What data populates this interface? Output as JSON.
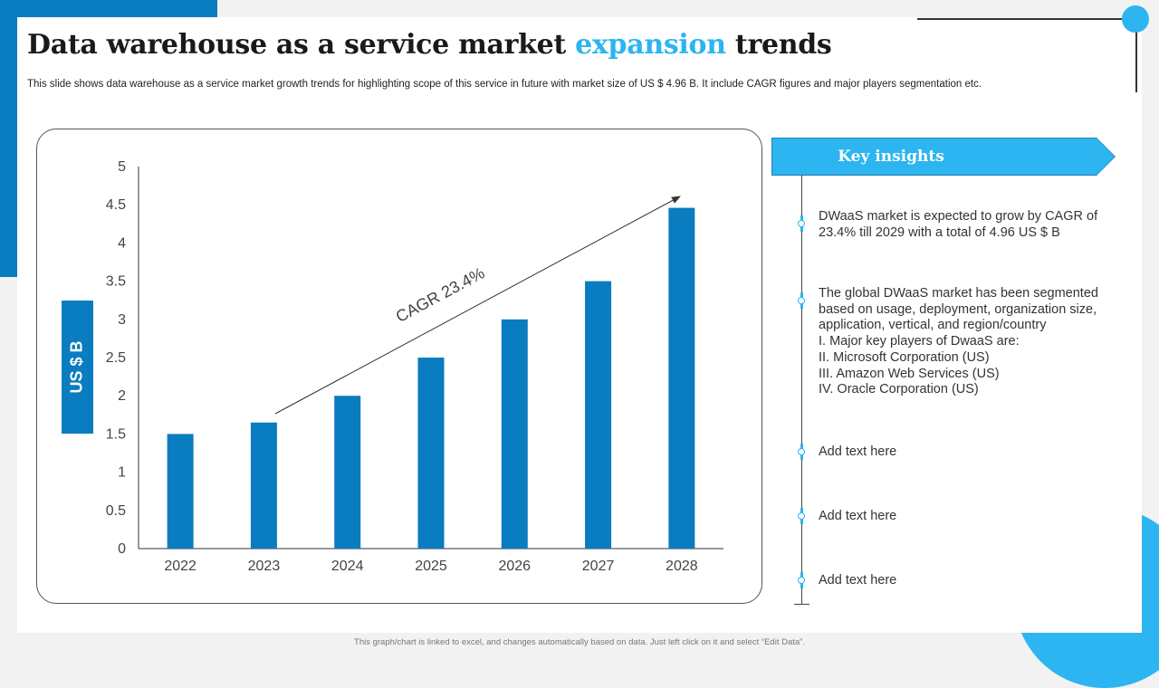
{
  "title": {
    "part1": "Data warehouse as a service market ",
    "highlight": "expansion",
    "part2": " trends"
  },
  "subtitle": "This slide shows data warehouse as a service market growth trends for highlighting scope of this service in future with market size of US $ 4.96 B. It include CAGR figures and major players segmentation etc.",
  "chart_data": {
    "type": "bar",
    "title": "",
    "xlabel": "",
    "ylabel": "US $ B",
    "categories": [
      "2022",
      "2023",
      "2024",
      "2025",
      "2026",
      "2027",
      "2028"
    ],
    "values": [
      1.5,
      1.65,
      2.0,
      2.5,
      3.0,
      3.5,
      4.46
    ],
    "ylim": [
      0,
      5
    ],
    "yticks": [
      "0",
      "0.5",
      "1",
      "1.5",
      "2",
      "2.5",
      "3",
      "3.5",
      "4",
      "4.5",
      "5"
    ],
    "annotation": "CAGR 23.4%",
    "grid": false,
    "bar_color": "#0a7cc0"
  },
  "insights": {
    "header": "Key insights",
    "items": [
      {
        "lines": [
          "DWaaS market is expected to grow by CAGR of",
          "23.4% till 2029 with a total of 4.96 US $ B"
        ]
      },
      {
        "lines": [
          "The global DWaaS market has been segmented",
          "based on usage, deployment, organization size,",
          "application, vertical, and region/country",
          "I.   Major key players of DwaaS are:",
          "II.  Microsoft Corporation (US)",
          "III. Amazon Web Services (US)",
          "IV. Oracle Corporation (US)"
        ]
      },
      {
        "lines": [
          "Add text here"
        ]
      },
      {
        "lines": [
          "Add text here"
        ]
      },
      {
        "lines": [
          "Add text here"
        ]
      }
    ]
  },
  "footer": "This graph/chart is linked to excel, and changes automatically based on data. Just left click on it and select “Edit Data”.",
  "colors": {
    "accent_light": "#2cb5f0",
    "accent_dark": "#0a7cc0"
  }
}
